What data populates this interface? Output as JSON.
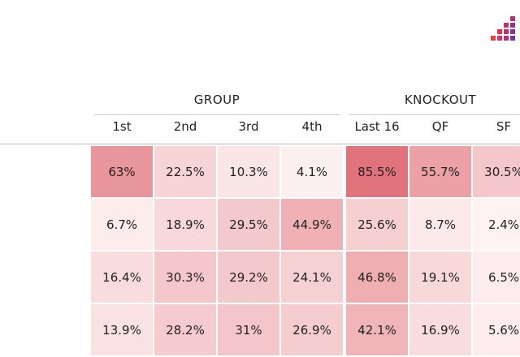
{
  "table": {
    "groups": [
      {
        "label": "GROUP",
        "columns": [
          "1st",
          "2nd",
          "3rd",
          "4th"
        ]
      },
      {
        "label": "KNOCKOUT",
        "columns": [
          "Last 16",
          "QF",
          "SF"
        ]
      }
    ],
    "rows": [
      [
        "63%",
        "22.5%",
        "10.3%",
        "4.1%",
        "85.5%",
        "55.7%",
        "30.5%"
      ],
      [
        "6.7%",
        "18.9%",
        "29.5%",
        "44.9%",
        "25.6%",
        "8.7%",
        "2.4%"
      ],
      [
        "16.4%",
        "30.3%",
        "29.2%",
        "24.1%",
        "46.8%",
        "19.1%",
        "6.5%"
      ],
      [
        "13.9%",
        "28.2%",
        "31%",
        "26.9%",
        "42.1%",
        "16.9%",
        "5.6%"
      ]
    ]
  }
}
